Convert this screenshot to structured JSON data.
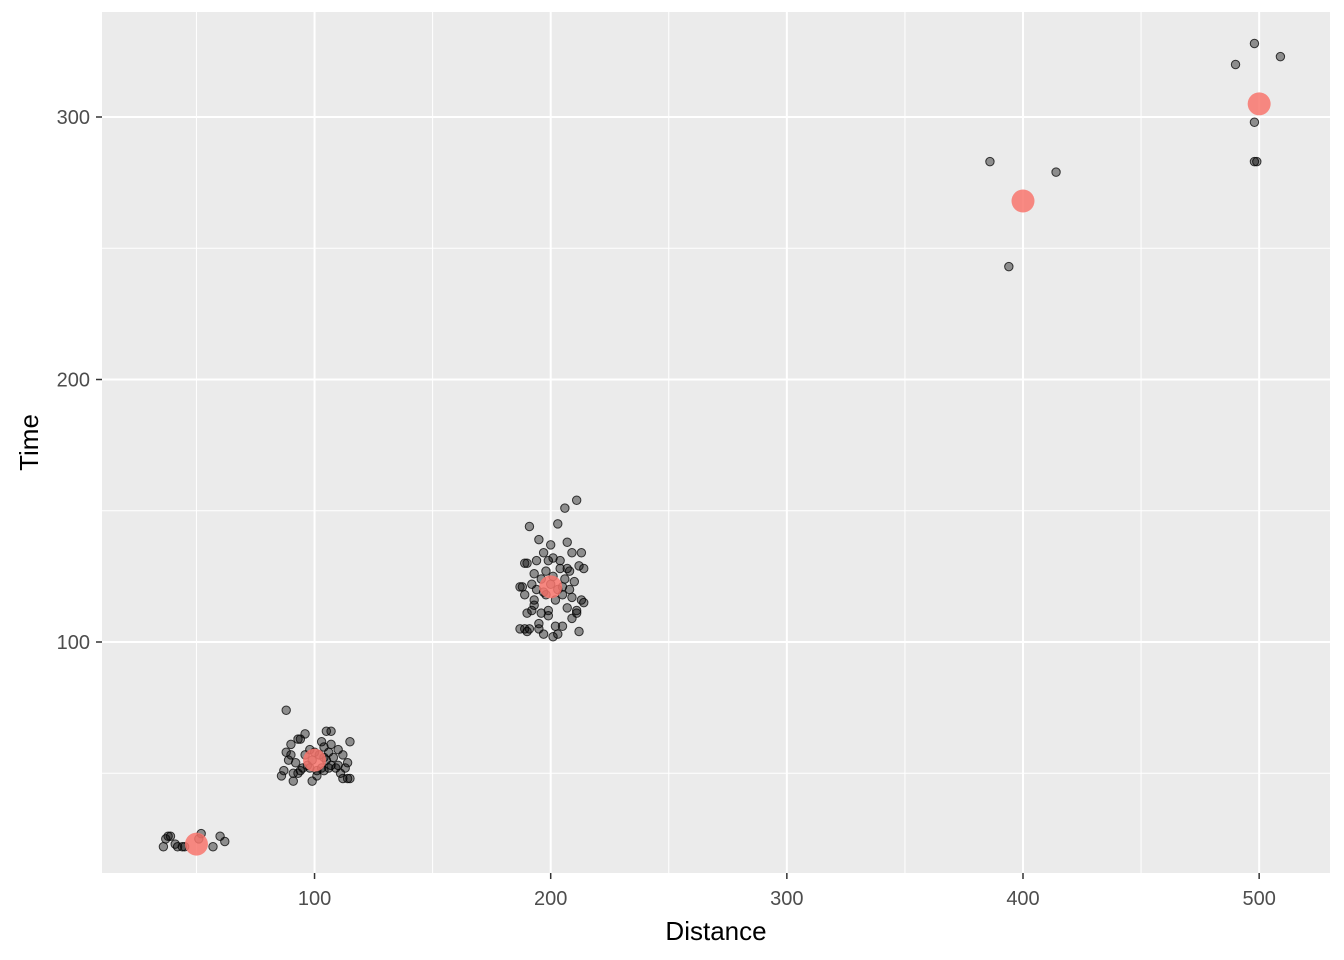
{
  "chart_data": {
    "type": "scatter",
    "title": "",
    "xlabel": "Distance",
    "ylabel": "Time",
    "xlim": [
      10,
      530
    ],
    "ylim": [
      12,
      340
    ],
    "x_major_ticks": [
      100,
      200,
      300,
      400,
      500
    ],
    "x_minor_ticks": [
      50,
      150,
      250,
      350,
      450
    ],
    "y_major_ticks": [
      100,
      200,
      300
    ],
    "y_minor_ticks": [
      50,
      150,
      250
    ],
    "grid": true,
    "legend": "none",
    "colors": {
      "panel_background": "#ebebeb",
      "grid_lines": "#ffffff",
      "points": "#000000",
      "means": "#f8766d"
    },
    "series": [
      {
        "values": [
          [
            36,
            22
          ],
          [
            37,
            25
          ],
          [
            38,
            26
          ],
          [
            39,
            26
          ],
          [
            41,
            23
          ],
          [
            42,
            22
          ],
          [
            44,
            22
          ],
          [
            45,
            22
          ],
          [
            51,
            25
          ],
          [
            52,
            27
          ],
          [
            57,
            22
          ],
          [
            60,
            26
          ],
          [
            62,
            24
          ],
          [
            86,
            49
          ],
          [
            87,
            51
          ],
          [
            88,
            58
          ],
          [
            89,
            55
          ],
          [
            90,
            57
          ],
          [
            90,
            61
          ],
          [
            91,
            47
          ],
          [
            91,
            50
          ],
          [
            92,
            54
          ],
          [
            93,
            63
          ],
          [
            94,
            51
          ],
          [
            95,
            52
          ],
          [
            96,
            57
          ],
          [
            97,
            53
          ],
          [
            98,
            59
          ],
          [
            99,
            55
          ],
          [
            99,
            47
          ],
          [
            100,
            58
          ],
          [
            101,
            51
          ],
          [
            101,
            49
          ],
          [
            102,
            57
          ],
          [
            103,
            52
          ],
          [
            103,
            62
          ],
          [
            104,
            56
          ],
          [
            104,
            51
          ],
          [
            105,
            55
          ],
          [
            106,
            58
          ],
          [
            106,
            52
          ],
          [
            107,
            53
          ],
          [
            107,
            61
          ],
          [
            108,
            56
          ],
          [
            109,
            52
          ],
          [
            110,
            53
          ],
          [
            110,
            59
          ],
          [
            111,
            50
          ],
          [
            112,
            48
          ],
          [
            112,
            57
          ],
          [
            113,
            52
          ],
          [
            114,
            54
          ],
          [
            114,
            48
          ],
          [
            115,
            62
          ],
          [
            115,
            48
          ],
          [
            94,
            63
          ],
          [
            96,
            65
          ],
          [
            98,
            52
          ],
          [
            104,
            60
          ],
          [
            105,
            66
          ],
          [
            107,
            66
          ],
          [
            93,
            50
          ],
          [
            88,
            74
          ],
          [
            187,
            105
          ],
          [
            188,
            121
          ],
          [
            189,
            118
          ],
          [
            189,
            105
          ],
          [
            190,
            130
          ],
          [
            190,
            111
          ],
          [
            191,
            144
          ],
          [
            192,
            112
          ],
          [
            192,
            122
          ],
          [
            193,
            126
          ],
          [
            193,
            116
          ],
          [
            194,
            120
          ],
          [
            194,
            131
          ],
          [
            195,
            139
          ],
          [
            195,
            107
          ],
          [
            196,
            111
          ],
          [
            196,
            124
          ],
          [
            197,
            103
          ],
          [
            197,
            134
          ],
          [
            198,
            127
          ],
          [
            198,
            118
          ],
          [
            199,
            131
          ],
          [
            199,
            110
          ],
          [
            200,
            137
          ],
          [
            200,
            122
          ],
          [
            201,
            125
          ],
          [
            201,
            132
          ],
          [
            202,
            106
          ],
          [
            202,
            116
          ],
          [
            203,
            145
          ],
          [
            203,
            120
          ],
          [
            204,
            128
          ],
          [
            204,
            131
          ],
          [
            205,
            118
          ],
          [
            205,
            106
          ],
          [
            206,
            151
          ],
          [
            206,
            124
          ],
          [
            207,
            138
          ],
          [
            207,
            113
          ],
          [
            208,
            120
          ],
          [
            208,
            127
          ],
          [
            209,
            134
          ],
          [
            209,
            109
          ],
          [
            210,
            123
          ],
          [
            211,
            154
          ],
          [
            211,
            111
          ],
          [
            212,
            104
          ],
          [
            212,
            129
          ],
          [
            213,
            116
          ],
          [
            213,
            134
          ],
          [
            214,
            128
          ],
          [
            214,
            115
          ],
          [
            190,
            104
          ],
          [
            191,
            105
          ],
          [
            193,
            114
          ],
          [
            195,
            105
          ],
          [
            197,
            119
          ],
          [
            199,
            112
          ],
          [
            201,
            102
          ],
          [
            203,
            103
          ],
          [
            205,
            121
          ],
          [
            207,
            128
          ],
          [
            209,
            117
          ],
          [
            211,
            112
          ],
          [
            187,
            121
          ],
          [
            189,
            130
          ],
          [
            386,
            283
          ],
          [
            394,
            243
          ],
          [
            414,
            279
          ],
          [
            490,
            320
          ],
          [
            498,
            298
          ],
          [
            498,
            283
          ],
          [
            499,
            283
          ],
          [
            498,
            328
          ],
          [
            509,
            323
          ]
        ]
      },
      {
        "values": [
          [
            50,
            23
          ],
          [
            100,
            55
          ],
          [
            200,
            121
          ],
          [
            400,
            268
          ],
          [
            500,
            305
          ]
        ]
      }
    ]
  }
}
